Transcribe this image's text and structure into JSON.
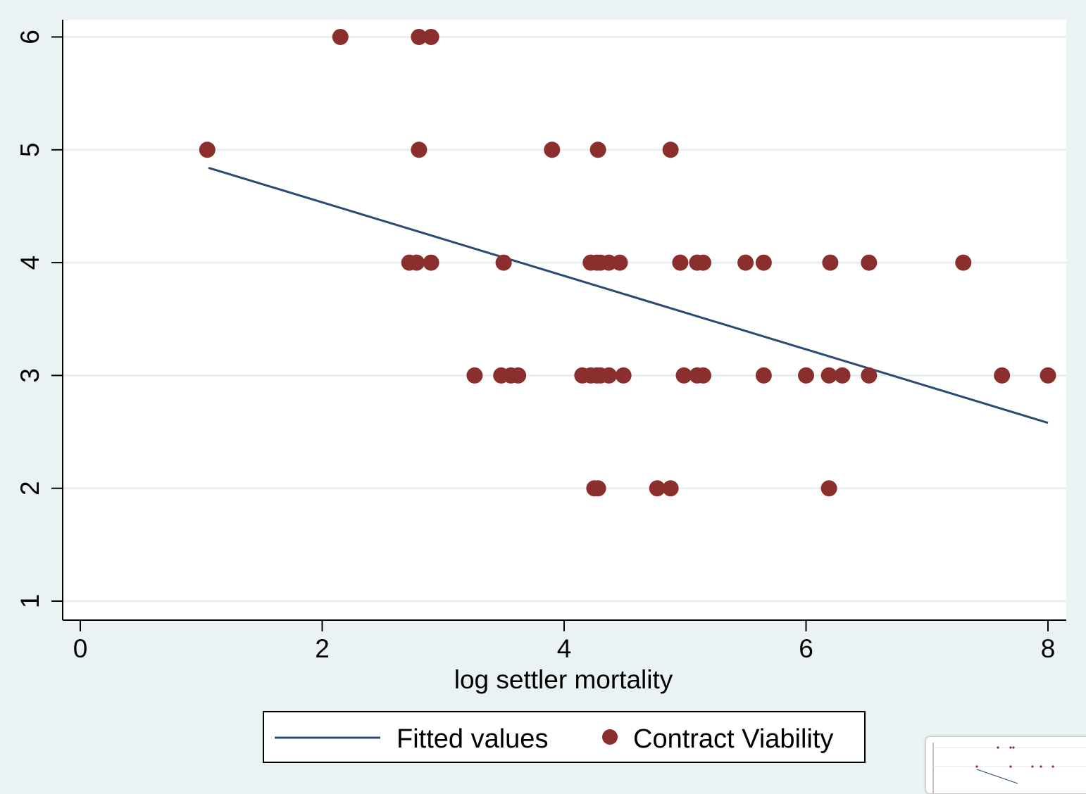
{
  "chart_data": {
    "type": "scatter",
    "xlabel": "log settler mortality",
    "ylabel": "",
    "xlim": [
      0,
      8
    ],
    "ylim": [
      1,
      6
    ],
    "xticks": [
      "0",
      "2",
      "4",
      "6",
      "8"
    ],
    "yticks": [
      "1",
      "2",
      "3",
      "4",
      "5",
      "6"
    ],
    "grid": "horizontal",
    "legend": {
      "position": "bottom",
      "entries": [
        "Fitted values",
        "Contract Viability"
      ]
    },
    "series": [
      {
        "name": "Contract Viability",
        "kind": "scatter",
        "color": "#8b2e2e",
        "points": [
          [
            2.15,
            6
          ],
          [
            2.8,
            6
          ],
          [
            2.9,
            6
          ],
          [
            1.05,
            5
          ],
          [
            2.8,
            5
          ],
          [
            3.9,
            5
          ],
          [
            4.28,
            5
          ],
          [
            4.88,
            5
          ],
          [
            2.72,
            4
          ],
          [
            2.78,
            4
          ],
          [
            2.9,
            4
          ],
          [
            3.5,
            4
          ],
          [
            4.22,
            4
          ],
          [
            4.27,
            4
          ],
          [
            4.3,
            4
          ],
          [
            4.37,
            4
          ],
          [
            4.46,
            4
          ],
          [
            4.96,
            4
          ],
          [
            5.1,
            4
          ],
          [
            5.15,
            4
          ],
          [
            5.5,
            4
          ],
          [
            5.65,
            4
          ],
          [
            6.2,
            4
          ],
          [
            6.52,
            4
          ],
          [
            7.3,
            4
          ],
          [
            3.26,
            3
          ],
          [
            3.48,
            3
          ],
          [
            3.56,
            3
          ],
          [
            3.62,
            3
          ],
          [
            4.15,
            3
          ],
          [
            4.22,
            3
          ],
          [
            4.27,
            3
          ],
          [
            4.3,
            3
          ],
          [
            4.37,
            3
          ],
          [
            4.49,
            3
          ],
          [
            4.99,
            3
          ],
          [
            5.1,
            3
          ],
          [
            5.15,
            3
          ],
          [
            5.65,
            3
          ],
          [
            6.0,
            3
          ],
          [
            6.19,
            3
          ],
          [
            6.3,
            3
          ],
          [
            6.52,
            3
          ],
          [
            7.62,
            3
          ],
          [
            8.0,
            3
          ],
          [
            4.25,
            2
          ],
          [
            4.28,
            2
          ],
          [
            4.77,
            2
          ],
          [
            4.88,
            2
          ],
          [
            6.19,
            2
          ]
        ]
      },
      {
        "name": "Fitted values",
        "kind": "line",
        "color": "#2a4a73",
        "points": [
          [
            1.06,
            4.84
          ],
          [
            8.0,
            2.58
          ]
        ]
      }
    ]
  }
}
